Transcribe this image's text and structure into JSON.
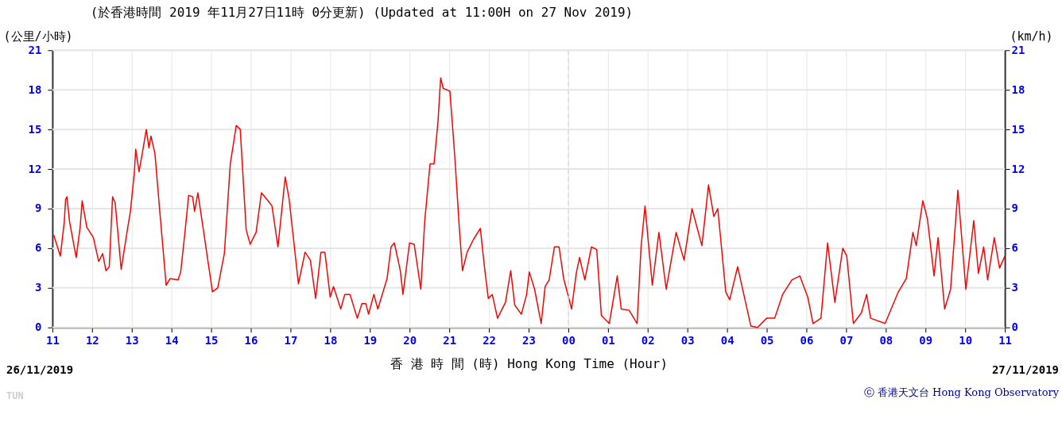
{
  "chart_data": {
    "type": "line",
    "title": "(於香港時間 2019 年11月27日11時 0分更新) (Updated at 11:00H on 27 Nov 2019)",
    "xlabel": "香 港 時 間 (時) Hong Kong Time (Hour)",
    "ylabel": "(公里/小時)",
    "y2label": "(km/h)",
    "annotations": [
      "26/11/2019",
      "27/11/2019",
      "ⓒ 香港天文台 Hong Kong Observatory",
      "TUN"
    ],
    "series": [
      {
        "color": "#ff0000",
        "x": [
          "2019-11-26T11:02",
          "2019-11-26T11:12",
          "2019-11-26T11:18",
          "2019-11-26T11:20",
          "2019-11-26T11:22",
          "2019-11-26T11:26",
          "2019-11-26T11:36",
          "2019-11-26T11:42",
          "2019-11-26T11:45",
          "2019-11-26T11:52",
          "2019-11-26T12:02",
          "2019-11-26T12:10",
          "2019-11-26T12:16",
          "2019-11-26T12:21",
          "2019-11-26T12:26",
          "2019-11-26T12:31",
          "2019-11-26T12:35",
          "2019-11-26T12:44",
          "2019-11-26T12:54",
          "2019-11-26T12:58",
          "2019-11-26T13:04",
          "2019-11-26T13:06",
          "2019-11-26T13:11",
          "2019-11-26T13:17",
          "2019-11-26T13:22",
          "2019-11-26T13:26",
          "2019-11-26T13:29",
          "2019-11-26T13:35",
          "2019-11-26T13:41",
          "2019-11-26T13:52",
          "2019-11-26T13:58",
          "2019-11-26T14:10",
          "2019-11-26T14:14",
          "2019-11-26T14:20",
          "2019-11-26T14:26",
          "2019-11-26T14:32",
          "2019-11-26T14:35",
          "2019-11-26T14:40",
          "2019-11-26T14:50",
          "2019-11-26T15:02",
          "2019-11-26T15:10",
          "2019-11-26T15:20",
          "2019-11-26T15:29",
          "2019-11-26T15:38",
          "2019-11-26T15:44",
          "2019-11-26T15:53",
          "2019-11-26T15:59",
          "2019-11-26T16:08",
          "2019-11-26T16:16",
          "2019-11-26T16:26",
          "2019-11-26T16:32",
          "2019-11-26T16:41",
          "2019-11-26T16:52",
          "2019-11-26T16:58",
          "2019-11-26T17:12",
          "2019-11-26T17:22",
          "2019-11-26T17:30",
          "2019-11-26T17:38",
          "2019-11-26T17:46",
          "2019-11-26T17:52",
          "2019-11-26T18:00",
          "2019-11-26T18:05",
          "2019-11-26T18:16",
          "2019-11-26T18:22",
          "2019-11-26T18:30",
          "2019-11-26T18:41",
          "2019-11-26T18:48",
          "2019-11-26T18:54",
          "2019-11-26T18:58",
          "2019-11-26T19:06",
          "2019-11-26T19:12",
          "2019-11-26T19:26",
          "2019-11-26T19:32",
          "2019-11-26T19:37",
          "2019-11-26T19:46",
          "2019-11-26T19:50",
          "2019-11-26T20:00",
          "2019-11-26T20:07",
          "2019-11-26T20:17",
          "2019-11-26T20:23",
          "2019-11-26T20:31",
          "2019-11-26T20:37",
          "2019-11-26T20:43",
          "2019-11-26T20:47",
          "2019-11-26T20:51",
          "2019-11-26T21:01",
          "2019-11-26T21:09",
          "2019-11-26T21:15",
          "2019-11-26T21:20",
          "2019-11-26T21:27",
          "2019-11-26T21:37",
          "2019-11-26T21:47",
          "2019-11-26T21:53",
          "2019-11-26T21:59",
          "2019-11-26T22:05",
          "2019-11-26T22:13",
          "2019-11-26T22:25",
          "2019-11-26T22:33",
          "2019-11-26T22:39",
          "2019-11-26T22:49",
          "2019-11-26T22:57",
          "2019-11-26T23:01",
          "2019-11-26T23:09",
          "2019-11-26T23:19",
          "2019-11-26T23:25",
          "2019-11-26T23:31",
          "2019-11-26T23:39",
          "2019-11-26T23:46",
          "2019-11-26T23:53",
          "2019-11-27T00:05",
          "2019-11-27T00:12",
          "2019-11-27T00:17",
          "2019-11-27T00:25",
          "2019-11-27T00:35",
          "2019-11-27T00:43",
          "2019-11-27T00:50",
          "2019-11-27T01:02",
          "2019-11-27T01:14",
          "2019-11-27T01:20",
          "2019-11-27T01:32",
          "2019-11-27T01:44",
          "2019-11-27T01:50",
          "2019-11-27T01:56",
          "2019-11-27T02:07",
          "2019-11-27T02:17",
          "2019-11-27T02:28",
          "2019-11-27T02:43",
          "2019-11-27T02:55",
          "2019-11-27T03:07",
          "2019-11-27T03:22",
          "2019-11-27T03:32",
          "2019-11-27T03:40",
          "2019-11-27T03:46",
          "2019-11-27T03:58",
          "2019-11-27T04:04",
          "2019-11-27T04:16",
          "2019-11-27T04:28",
          "2019-11-27T04:36",
          "2019-11-27T04:46",
          "2019-11-27T05:00",
          "2019-11-27T05:12",
          "2019-11-27T05:24",
          "2019-11-27T05:38",
          "2019-11-27T05:50",
          "2019-11-27T06:02",
          "2019-11-27T06:10",
          "2019-11-27T06:22",
          "2019-11-27T06:32",
          "2019-11-27T06:43",
          "2019-11-27T06:55",
          "2019-11-27T07:01",
          "2019-11-27T07:11",
          "2019-11-27T07:23",
          "2019-11-27T07:31",
          "2019-11-27T07:37",
          "2019-11-27T07:59",
          "2019-11-27T08:19",
          "2019-11-27T08:31",
          "2019-11-27T08:41",
          "2019-11-27T08:46",
          "2019-11-27T08:56",
          "2019-11-27T09:03",
          "2019-11-27T09:13",
          "2019-11-27T09:19",
          "2019-11-27T09:29",
          "2019-11-27T09:38",
          "2019-11-27T09:49",
          "2019-11-27T10:01",
          "2019-11-27T10:13",
          "2019-11-27T10:20",
          "2019-11-27T10:28",
          "2019-11-27T10:34",
          "2019-11-27T10:44",
          "2019-11-27T10:52",
          "2019-11-27T11:00"
        ],
        "values": [
          7.0,
          5.4,
          8.0,
          9.7,
          9.9,
          8.0,
          5.3,
          7.6,
          9.6,
          7.6,
          6.8,
          5.0,
          5.6,
          4.3,
          4.6,
          9.9,
          9.4,
          4.4,
          7.6,
          8.8,
          11.8,
          13.5,
          11.8,
          13.5,
          15.0,
          13.6,
          14.5,
          13.2,
          9.6,
          3.2,
          3.7,
          3.6,
          4.2,
          7.0,
          10.0,
          9.9,
          8.8,
          10.2,
          6.8,
          2.7,
          3.0,
          5.6,
          12.4,
          15.3,
          15.0,
          7.4,
          6.3,
          7.2,
          10.2,
          9.6,
          9.2,
          6.1,
          11.4,
          9.7,
          3.3,
          5.7,
          5.1,
          2.2,
          5.7,
          5.7,
          2.3,
          3.1,
          1.4,
          2.5,
          2.5,
          0.7,
          1.8,
          1.8,
          1.0,
          2.5,
          1.4,
          3.7,
          6.1,
          6.4,
          4.3,
          2.5,
          6.4,
          6.3,
          2.9,
          8.1,
          12.4,
          12.4,
          15.6,
          18.9,
          18.1,
          17.9,
          12.5,
          7.7,
          4.3,
          5.7,
          6.7,
          7.5,
          4.7,
          2.2,
          2.5,
          0.7,
          1.9,
          4.3,
          1.7,
          1.0,
          2.5,
          4.2,
          2.9,
          0.3,
          3.1,
          3.6,
          6.1,
          6.1,
          3.7,
          1.4,
          4.1,
          5.3,
          3.6,
          6.1,
          5.9,
          0.9,
          0.3,
          3.9,
          1.4,
          1.3,
          0.3,
          6.1,
          9.2,
          3.2,
          7.2,
          2.9,
          7.2,
          5.1,
          9.0,
          6.2,
          10.8,
          8.4,
          9.0,
          2.7,
          2.1,
          4.6,
          1.9,
          0.1,
          0.0,
          0.7,
          0.7,
          2.5,
          3.6,
          3.9,
          2.3,
          0.3,
          0.7,
          6.4,
          1.9,
          6.0,
          5.4,
          0.3,
          1.1,
          2.5,
          0.7,
          0.3,
          2.7,
          3.7,
          7.2,
          6.2,
          9.6,
          8.2,
          3.9,
          6.8,
          1.4,
          2.9,
          10.4,
          2.9,
          8.1,
          4.1,
          6.1,
          3.6,
          6.8,
          4.5,
          5.4
        ]
      }
    ],
    "xlim": [
      "2019-11-26T11:00",
      "2019-11-27T11:00"
    ],
    "xticks": [
      {
        "value": "2019-11-26T11:00",
        "label": "11"
      },
      {
        "value": "2019-11-26T12:00",
        "label": "12"
      },
      {
        "value": "2019-11-26T13:00",
        "label": "13"
      },
      {
        "value": "2019-11-26T14:00",
        "label": "14"
      },
      {
        "value": "2019-11-26T15:00",
        "label": "15"
      },
      {
        "value": "2019-11-26T16:00",
        "label": "16"
      },
      {
        "value": "2019-11-26T17:00",
        "label": "17"
      },
      {
        "value": "2019-11-26T18:00",
        "label": "18"
      },
      {
        "value": "2019-11-26T19:00",
        "label": "19"
      },
      {
        "value": "2019-11-26T20:00",
        "label": "20"
      },
      {
        "value": "2019-11-26T21:00",
        "label": "21"
      },
      {
        "value": "2019-11-26T22:00",
        "label": "22"
      },
      {
        "value": "2019-11-26T23:00",
        "label": "23"
      },
      {
        "value": "2019-11-27T00:00",
        "label": "00"
      },
      {
        "value": "2019-11-27T01:00",
        "label": "01"
      },
      {
        "value": "2019-11-27T02:00",
        "label": "02"
      },
      {
        "value": "2019-11-27T03:00",
        "label": "03"
      },
      {
        "value": "2019-11-27T04:00",
        "label": "04"
      },
      {
        "value": "2019-11-27T05:00",
        "label": "05"
      },
      {
        "value": "2019-11-27T06:00",
        "label": "06"
      },
      {
        "value": "2019-11-27T07:00",
        "label": "07"
      },
      {
        "value": "2019-11-27T08:00",
        "label": "08"
      },
      {
        "value": "2019-11-27T09:00",
        "label": "09"
      },
      {
        "value": "2019-11-27T10:00",
        "label": "10"
      },
      {
        "value": "2019-11-27T11:00",
        "label": "11"
      }
    ],
    "ylim": [
      0,
      21
    ],
    "yticks": [
      0,
      3,
      6,
      9,
      12,
      15,
      18,
      21
    ],
    "y2lim": [
      0,
      21
    ],
    "y2ticks": [
      0,
      3,
      6,
      9,
      12,
      15,
      18,
      21
    ],
    "ref_lines": [
      {
        "axis": "x",
        "value": "2019-11-27T00:00",
        "color": "#dddddd",
        "line_style": "dashed"
      }
    ],
    "grid": true,
    "marker": "none",
    "line_style": "solid"
  }
}
